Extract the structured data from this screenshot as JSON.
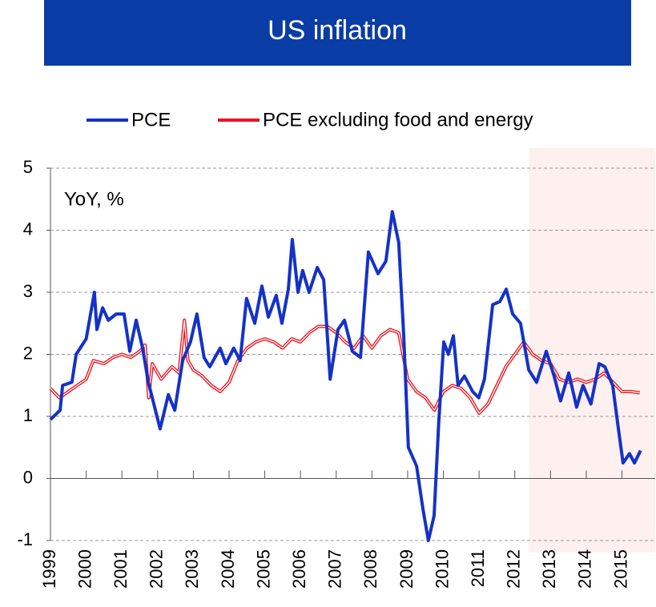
{
  "chart_data": {
    "type": "line",
    "title": "US inflation",
    "annotation": "YoY, %",
    "xlim": [
      1999,
      2015.93
    ],
    "xticks": [
      1999,
      2000,
      2001,
      2002,
      2003,
      2004,
      2005,
      2006,
      2007,
      2008,
      2009,
      2010,
      2011,
      2012,
      2013,
      2014,
      2015
    ],
    "ylim": [
      -1,
      5
    ],
    "yticks": [
      -1,
      0,
      1,
      2,
      3,
      4,
      5
    ],
    "grid": true,
    "highlight_xrange": [
      2012.4,
      2015.93
    ],
    "highlight_color": "#fdf0ee",
    "series": [
      {
        "name": "PCE",
        "color": "#1432c8",
        "x": [
          1999.0,
          1999.27,
          1999.34,
          1999.6,
          1999.72,
          2000.0,
          2000.23,
          2000.3,
          2000.46,
          2000.62,
          2000.84,
          2001.06,
          2001.22,
          2001.4,
          2001.58,
          2001.74,
          2001.85,
          2002.07,
          2002.3,
          2002.48,
          2002.7,
          2002.92,
          2003.1,
          2003.3,
          2003.46,
          2003.75,
          2003.91,
          2004.13,
          2004.31,
          2004.49,
          2004.72,
          2004.92,
          2005.1,
          2005.32,
          2005.48,
          2005.66,
          2005.77,
          2005.93,
          2006.06,
          2006.24,
          2006.47,
          2006.65,
          2006.83,
          2007.05,
          2007.23,
          2007.45,
          2007.68,
          2007.9,
          2008.17,
          2008.39,
          2008.57,
          2008.75,
          2008.89,
          2009.02,
          2009.25,
          2009.43,
          2009.58,
          2009.74,
          2009.87,
          2010.01,
          2010.14,
          2010.28,
          2010.41,
          2010.59,
          2010.82,
          2010.99,
          2011.15,
          2011.38,
          2011.58,
          2011.76,
          2011.94,
          2012.16,
          2012.39,
          2012.61,
          2012.88,
          2013.1,
          2013.28,
          2013.51,
          2013.73,
          2013.91,
          2014.13,
          2014.36,
          2014.52,
          2014.74,
          2014.9,
          2015.03,
          2015.21,
          2015.35,
          2015.52
        ],
        "values": [
          0.95,
          1.1,
          1.5,
          1.55,
          2.0,
          2.25,
          3.0,
          2.4,
          2.75,
          2.55,
          2.65,
          2.65,
          2.05,
          2.55,
          2.1,
          1.55,
          1.3,
          0.8,
          1.35,
          1.1,
          1.9,
          2.2,
          2.65,
          1.95,
          1.8,
          2.1,
          1.85,
          2.1,
          1.9,
          2.9,
          2.5,
          3.1,
          2.6,
          2.95,
          2.5,
          3.05,
          3.85,
          3.0,
          3.35,
          3.0,
          3.4,
          3.2,
          1.6,
          2.4,
          2.55,
          2.05,
          1.95,
          3.65,
          3.3,
          3.5,
          4.3,
          3.8,
          2.3,
          0.5,
          0.2,
          -0.5,
          -1.0,
          -0.6,
          0.9,
          2.2,
          2.0,
          2.3,
          1.5,
          1.65,
          1.4,
          1.3,
          1.6,
          2.8,
          2.85,
          3.05,
          2.65,
          2.5,
          1.75,
          1.55,
          2.05,
          1.65,
          1.25,
          1.7,
          1.15,
          1.5,
          1.2,
          1.85,
          1.8,
          1.5,
          0.8,
          0.25,
          0.4,
          0.25,
          0.45
        ]
      },
      {
        "name": "PCE excluding food and energy",
        "color": "#e8141e",
        "x": [
          1999.0,
          1999.25,
          1999.5,
          1999.75,
          2000.0,
          2000.2,
          2000.5,
          2000.75,
          2001.0,
          2001.25,
          2001.5,
          2001.65,
          2001.75,
          2001.85,
          2002.1,
          2002.4,
          2002.6,
          2002.75,
          2002.85,
          2003.0,
          2003.25,
          2003.5,
          2003.75,
          2004.0,
          2004.25,
          2004.5,
          2004.75,
          2005.0,
          2005.25,
          2005.5,
          2005.75,
          2006.0,
          2006.25,
          2006.5,
          2006.75,
          2007.0,
          2007.25,
          2007.5,
          2007.75,
          2008.0,
          2008.25,
          2008.5,
          2008.75,
          2009.0,
          2009.25,
          2009.5,
          2009.75,
          2010.0,
          2010.25,
          2010.5,
          2010.75,
          2011.0,
          2011.25,
          2011.5,
          2011.75,
          2012.0,
          2012.25,
          2012.5,
          2012.75,
          2013.0,
          2013.25,
          2013.5,
          2013.75,
          2014.0,
          2014.25,
          2014.5,
          2014.75,
          2015.0,
          2015.25,
          2015.5
        ],
        "values": [
          1.45,
          1.3,
          1.4,
          1.5,
          1.6,
          1.9,
          1.85,
          1.95,
          2.0,
          1.95,
          2.05,
          2.15,
          1.3,
          1.85,
          1.6,
          1.8,
          1.7,
          2.55,
          1.9,
          1.75,
          1.65,
          1.5,
          1.4,
          1.55,
          1.9,
          2.1,
          2.2,
          2.25,
          2.2,
          2.1,
          2.25,
          2.2,
          2.35,
          2.45,
          2.45,
          2.35,
          2.2,
          2.1,
          2.3,
          2.1,
          2.3,
          2.4,
          2.35,
          1.6,
          1.4,
          1.3,
          1.1,
          1.4,
          1.5,
          1.45,
          1.3,
          1.05,
          1.2,
          1.5,
          1.8,
          2.0,
          2.2,
          2.0,
          1.9,
          1.85,
          1.6,
          1.55,
          1.6,
          1.55,
          1.6,
          1.7,
          1.55,
          1.4,
          1.4,
          1.38
        ]
      }
    ]
  }
}
